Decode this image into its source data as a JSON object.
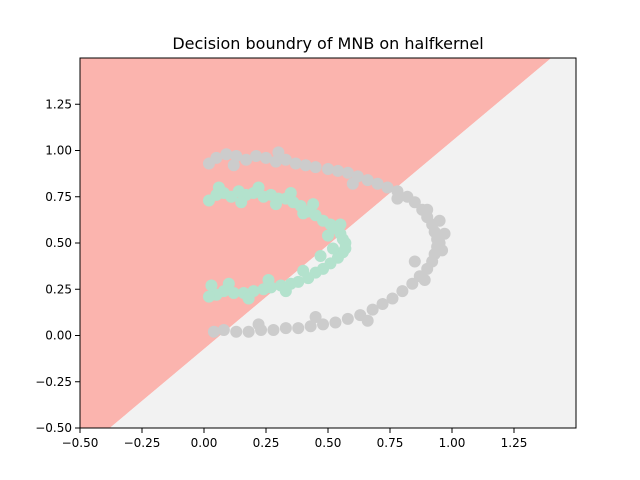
{
  "chart_data": {
    "type": "scatter",
    "title": "Decision boundry of MNB on halfkernel",
    "xlabel": "",
    "ylabel": "",
    "xlim": [
      -0.5,
      1.5
    ],
    "ylim": [
      -0.5,
      1.5
    ],
    "x_ticks": [
      -0.5,
      -0.25,
      0.0,
      0.25,
      0.5,
      0.75,
      1.0,
      1.25
    ],
    "x_tick_labels": [
      "−0.50",
      "−0.25",
      "0.00",
      "0.25",
      "0.50",
      "0.75",
      "1.00",
      "1.25"
    ],
    "y_ticks": [
      -0.5,
      -0.25,
      0.0,
      0.25,
      0.5,
      0.75,
      1.0,
      1.25
    ],
    "y_tick_labels": [
      "−0.50",
      "−0.25",
      "0.00",
      "0.25",
      "0.50",
      "0.75",
      "1.00",
      "1.25"
    ],
    "grid": false,
    "decision_regions": [
      {
        "class": "upper-left",
        "color": "#fbb4ae",
        "polygon": [
          [
            -0.5,
            1.5
          ],
          [
            1.4,
            1.5
          ],
          [
            -0.38,
            -0.5
          ],
          [
            -0.5,
            -0.5
          ]
        ]
      },
      {
        "class": "lower-right",
        "color": "#f2f2f2",
        "polygon": [
          [
            1.4,
            1.5
          ],
          [
            1.5,
            1.5
          ],
          [
            1.5,
            -0.5
          ],
          [
            -0.38,
            -0.5
          ]
        ]
      }
    ],
    "series": [
      {
        "color": "#b3e2cd",
        "points": [
          [
            0.02,
            0.73
          ],
          [
            0.05,
            0.76
          ],
          [
            0.08,
            0.77
          ],
          [
            0.11,
            0.75
          ],
          [
            0.14,
            0.78
          ],
          [
            0.17,
            0.76
          ],
          [
            0.2,
            0.77
          ],
          [
            0.24,
            0.75
          ],
          [
            0.27,
            0.76
          ],
          [
            0.3,
            0.74
          ],
          [
            0.33,
            0.74
          ],
          [
            0.36,
            0.72
          ],
          [
            0.39,
            0.7
          ],
          [
            0.42,
            0.67
          ],
          [
            0.45,
            0.65
          ],
          [
            0.48,
            0.62
          ],
          [
            0.51,
            0.6
          ],
          [
            0.53,
            0.58
          ],
          [
            0.55,
            0.55
          ],
          [
            0.56,
            0.52
          ],
          [
            0.57,
            0.5
          ],
          [
            0.57,
            0.47
          ],
          [
            0.56,
            0.45
          ],
          [
            0.54,
            0.42
          ],
          [
            0.51,
            0.39
          ],
          [
            0.48,
            0.36
          ],
          [
            0.45,
            0.34
          ],
          [
            0.42,
            0.31
          ],
          [
            0.38,
            0.29
          ],
          [
            0.35,
            0.28
          ],
          [
            0.31,
            0.27
          ],
          [
            0.27,
            0.26
          ],
          [
            0.24,
            0.25
          ],
          [
            0.2,
            0.24
          ],
          [
            0.16,
            0.23
          ],
          [
            0.12,
            0.23
          ],
          [
            0.08,
            0.24
          ],
          [
            0.05,
            0.22
          ],
          [
            0.02,
            0.21
          ],
          [
            0.03,
            0.27
          ],
          [
            0.06,
            0.8
          ],
          [
            0.15,
            0.72
          ],
          [
            0.22,
            0.8
          ],
          [
            0.29,
            0.71
          ],
          [
            0.35,
            0.77
          ],
          [
            0.44,
            0.71
          ],
          [
            0.5,
            0.54
          ],
          [
            0.52,
            0.47
          ],
          [
            0.55,
            0.6
          ],
          [
            0.47,
            0.43
          ],
          [
            0.4,
            0.35
          ],
          [
            0.33,
            0.24
          ],
          [
            0.26,
            0.3
          ],
          [
            0.18,
            0.2
          ],
          [
            0.1,
            0.28
          ],
          [
            0.4,
            0.66
          ]
        ]
      },
      {
        "color": "#cccccc",
        "points": [
          [
            0.02,
            0.93
          ],
          [
            0.05,
            0.96
          ],
          [
            0.09,
            0.98
          ],
          [
            0.13,
            0.97
          ],
          [
            0.17,
            0.95
          ],
          [
            0.21,
            0.97
          ],
          [
            0.25,
            0.96
          ],
          [
            0.29,
            0.94
          ],
          [
            0.33,
            0.95
          ],
          [
            0.37,
            0.93
          ],
          [
            0.41,
            0.92
          ],
          [
            0.45,
            0.91
          ],
          [
            0.5,
            0.9
          ],
          [
            0.54,
            0.89
          ],
          [
            0.58,
            0.88
          ],
          [
            0.62,
            0.86
          ],
          [
            0.66,
            0.84
          ],
          [
            0.7,
            0.82
          ],
          [
            0.74,
            0.8
          ],
          [
            0.78,
            0.78
          ],
          [
            0.82,
            0.75
          ],
          [
            0.85,
            0.72
          ],
          [
            0.88,
            0.68
          ],
          [
            0.9,
            0.64
          ],
          [
            0.92,
            0.6
          ],
          [
            0.93,
            0.56
          ],
          [
            0.94,
            0.52
          ],
          [
            0.94,
            0.48
          ],
          [
            0.93,
            0.44
          ],
          [
            0.92,
            0.4
          ],
          [
            0.9,
            0.36
          ],
          [
            0.87,
            0.32
          ],
          [
            0.84,
            0.28
          ],
          [
            0.8,
            0.24
          ],
          [
            0.76,
            0.2
          ],
          [
            0.72,
            0.17
          ],
          [
            0.68,
            0.14
          ],
          [
            0.63,
            0.11
          ],
          [
            0.58,
            0.09
          ],
          [
            0.53,
            0.07
          ],
          [
            0.48,
            0.06
          ],
          [
            0.43,
            0.05
          ],
          [
            0.38,
            0.04
          ],
          [
            0.33,
            0.04
          ],
          [
            0.28,
            0.03
          ],
          [
            0.23,
            0.03
          ],
          [
            0.18,
            0.02
          ],
          [
            0.13,
            0.02
          ],
          [
            0.08,
            0.03
          ],
          [
            0.04,
            0.02
          ],
          [
            0.9,
            0.68
          ],
          [
            0.95,
            0.62
          ],
          [
            0.97,
            0.55
          ],
          [
            0.96,
            0.46
          ],
          [
            0.89,
            0.3
          ],
          [
            0.78,
            0.74
          ],
          [
            0.6,
            0.82
          ],
          [
            0.3,
            0.99
          ],
          [
            0.12,
            0.92
          ],
          [
            0.66,
            0.08
          ],
          [
            0.45,
            0.1
          ],
          [
            0.22,
            0.06
          ],
          [
            0.85,
            0.4
          ],
          [
            0.95,
            0.5
          ]
        ]
      }
    ]
  }
}
